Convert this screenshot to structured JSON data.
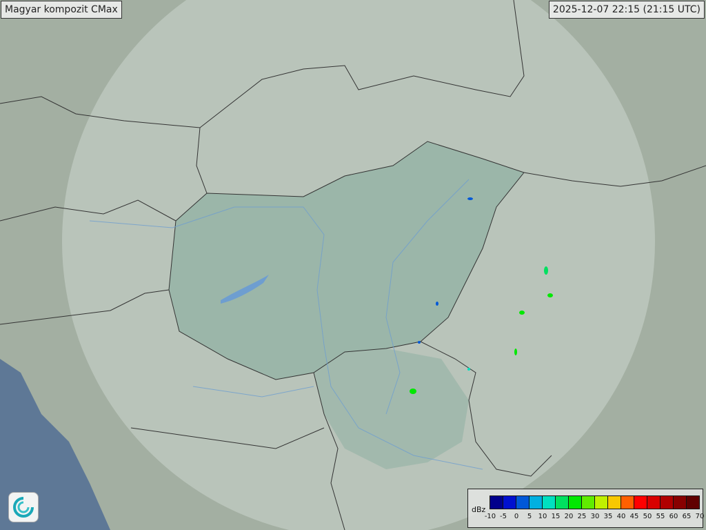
{
  "header": {
    "product_title": "Magyar kompozit  CMax",
    "timestamp": "2025-12-07 22:15 (21:15 UTC)"
  },
  "legend": {
    "unit": "dBz",
    "ticks": [
      "-10",
      "-5",
      "0",
      "5",
      "10",
      "15",
      "20",
      "25",
      "30",
      "35",
      "40",
      "45",
      "50",
      "55",
      "60",
      "65",
      "70"
    ],
    "colors": [
      "#00008c",
      "#0010d0",
      "#0058d8",
      "#00b0e0",
      "#00e0c0",
      "#00e060",
      "#00e800",
      "#60ec00",
      "#c0f000",
      "#f8c800",
      "#ff6000",
      "#ff0000",
      "#d80000",
      "#b00000",
      "#880000",
      "#600000"
    ]
  },
  "colors": {
    "land": "#a9b5a8",
    "sea": "#5e7896",
    "radar_coverage": "#c8d2cc",
    "hungary_fill": "#8fb0a2",
    "border": "#333333",
    "river": "#6e9ed0"
  },
  "logo": {
    "icon": "met-service-swirl-logo"
  }
}
